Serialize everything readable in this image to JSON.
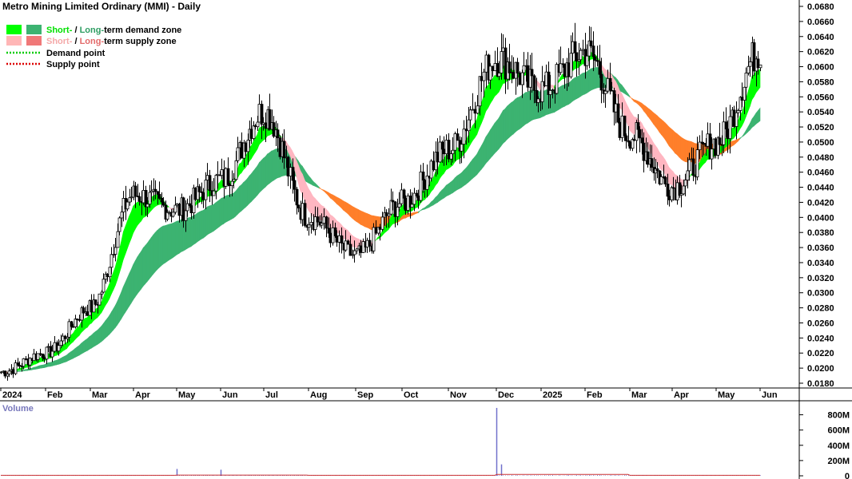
{
  "chart_data": {
    "type": "candlestick",
    "title": "Metro Mining Limited Ordinary (MMI) - Daily",
    "legend": [
      {
        "prefix": "Short-",
        "sep": " / ",
        "middle": "Long-",
        "suffix": "term demand zone",
        "prefix_color": "#00e000",
        "middle_color": "#2e9d62",
        "swatch_short": "#00ff00",
        "swatch_long": "#3cb371"
      },
      {
        "prefix": "Short-",
        "sep": " / ",
        "middle": "Long-",
        "suffix": "term supply zone",
        "prefix_color": "#f4a8a8",
        "middle_color": "#e36a6a",
        "swatch_short": "#ffb6b6",
        "swatch_long": "#f07878"
      },
      {
        "label": "Demand point",
        "color": "#00cc00"
      },
      {
        "label": "Supply point",
        "color": "#dd0000"
      }
    ],
    "colors": {
      "short_demand": "#00ff00",
      "long_demand": "#3cb371",
      "short_supply": "#ffb6c1",
      "long_supply": "#ff7f2a",
      "candle": "#000000",
      "volume": "#7070cc",
      "volume_ma": "#cc3333"
    },
    "y_axis": {
      "min": 0.017,
      "max": 0.069,
      "ticks": [
        "0.0680",
        "0.0660",
        "0.0640",
        "0.0620",
        "0.0600",
        "0.0580",
        "0.0560",
        "0.0540",
        "0.0520",
        "0.0500",
        "0.0480",
        "0.0460",
        "0.0440",
        "0.0420",
        "0.0400",
        "0.0380",
        "0.0360",
        "0.0340",
        "0.0320",
        "0.0300",
        "0.0280",
        "0.0260",
        "0.0240",
        "0.0220",
        "0.0200",
        "0.0180"
      ]
    },
    "x_axis": {
      "labels": [
        "2024",
        "Feb",
        "Mar",
        "Apr",
        "May",
        "Jun",
        "Jul",
        "Aug",
        "Sep",
        "Oct",
        "Nov",
        "Dec",
        "2025",
        "Feb",
        "Mar",
        "Apr",
        "May",
        "Jun"
      ]
    },
    "price_keyframes": {
      "months": [
        0,
        1,
        2,
        3,
        4,
        5,
        6,
        7,
        8,
        9,
        10,
        11,
        12,
        13,
        14,
        15,
        16,
        17
      ],
      "close": [
        0.0195,
        0.022,
        0.028,
        0.043,
        0.041,
        0.045,
        0.054,
        0.04,
        0.035,
        0.042,
        0.049,
        0.061,
        0.057,
        0.062,
        0.051,
        0.044,
        0.05,
        0.062
      ]
    },
    "volume_axis": {
      "max": 900,
      "ticks": [
        "800M",
        "600M",
        "400M",
        "200M",
        "0"
      ]
    },
    "volume_spikes": [
      {
        "month": 11.0,
        "value": 890
      },
      {
        "month": 11.1,
        "value": 150
      },
      {
        "month": 4.0,
        "value": 90
      },
      {
        "month": 5.0,
        "value": 80
      }
    ]
  }
}
